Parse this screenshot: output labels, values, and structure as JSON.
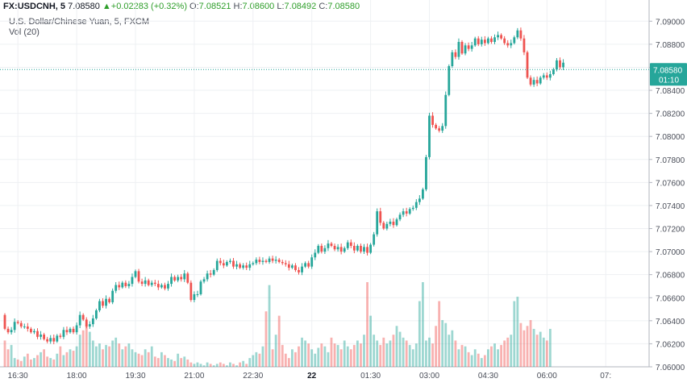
{
  "header": {
    "symbol": "FX:USDCNH, 5",
    "last": "7.08580",
    "change": "+0.02283 (+0.32%)",
    "o_label": "O:",
    "o": "7.08521",
    "h_label": "H:",
    "h": "7.08600",
    "l_label": "L:",
    "l": "7.08492",
    "c_label": "C:",
    "c": "7.08580"
  },
  "subtitle": "U.S. Dollar/Chinese Yuan, 5, FXCM",
  "vol_label": "Vol (20)",
  "colors": {
    "up": "#26a69a",
    "down": "#ef5350",
    "grid": "#eef0f3",
    "price_line": "#26a69a",
    "axis_text": "#4a4e59"
  },
  "chart_data": {
    "type": "candlestick",
    "y_ticks": [
      "7.09000",
      "7.08800",
      "7.08600",
      "7.08400",
      "7.08200",
      "7.08000",
      "7.07800",
      "7.07600",
      "7.07400",
      "7.07200",
      "7.07000",
      "7.06800",
      "7.06600",
      "7.06400",
      "7.06200",
      "7.06000"
    ],
    "ylim": [
      7.06,
      7.091
    ],
    "x_ticks": [
      {
        "label": "16:30",
        "i": 4
      },
      {
        "label": "18:00",
        "i": 22
      },
      {
        "label": "19:30",
        "i": 40
      },
      {
        "label": "21:00",
        "i": 58
      },
      {
        "label": "22:30",
        "i": 76
      },
      {
        "label": "22",
        "i": 94,
        "bold": true
      },
      {
        "label": "01:30",
        "i": 112
      },
      {
        "label": "03:00",
        "i": 130
      },
      {
        "label": "04:30",
        "i": 148
      },
      {
        "label": "06:00",
        "i": 166
      },
      {
        "label": "07:",
        "i": 184
      }
    ],
    "last_price": "7.08580",
    "countdown": "01:10",
    "price_base": 7.0645,
    "moves": [
      -12,
      -3,
      2,
      7,
      -1,
      -3,
      0,
      -2,
      -3,
      1,
      -5,
      2,
      -4,
      -2,
      3,
      -3,
      5,
      -1,
      6,
      -2,
      3,
      -3,
      6,
      9,
      -4,
      -6,
      2,
      5,
      7,
      8,
      -4,
      6,
      -3,
      10,
      5,
      -2,
      4,
      -3,
      2,
      6,
      5,
      -9,
      -2,
      3,
      -4,
      2,
      -1,
      -3,
      2,
      -3,
      4,
      6,
      -3,
      3,
      -2,
      5,
      -8,
      -15,
      5,
      0,
      11,
      2,
      5,
      -1,
      4,
      8,
      -2,
      -2,
      3,
      1,
      -5,
      2,
      -3,
      2,
      -2,
      3,
      1,
      3,
      -2,
      1,
      -1,
      3,
      -2,
      1,
      -2,
      -1,
      -1,
      -3,
      2,
      -4,
      -2,
      5,
      3,
      -3,
      8,
      4,
      6,
      -5,
      3,
      4,
      -2,
      -3,
      2,
      -4,
      3,
      5,
      -3,
      -4,
      4,
      -5,
      4,
      -5,
      7,
      9,
      20,
      -10,
      -5,
      4,
      2,
      -3,
      5,
      4,
      3,
      -2,
      4,
      1,
      5,
      3,
      8,
      28,
      36,
      -8,
      -3,
      -2,
      4,
      27,
      25,
      12,
      -4,
      13,
      -10,
      7,
      -3,
      3,
      6,
      -5,
      4,
      -3,
      4,
      -3,
      4,
      2,
      -3,
      -4,
      -2,
      2,
      5,
      6,
      -7,
      -12,
      -22,
      -6,
      4,
      -3,
      5,
      2,
      -2,
      3,
      4,
      8,
      -6,
      4
    ],
    "volume": [
      18,
      12,
      15,
      6,
      5,
      4,
      7,
      9,
      5,
      6,
      8,
      10,
      12,
      7,
      6,
      5,
      9,
      14,
      8,
      10,
      12,
      11,
      14,
      22,
      25,
      30,
      24,
      18,
      14,
      16,
      12,
      15,
      14,
      18,
      20,
      16,
      12,
      14,
      16,
      12,
      10,
      9,
      8,
      12,
      10,
      14,
      7,
      6,
      10,
      8,
      6,
      5,
      4,
      9,
      6,
      7,
      5,
      3,
      2,
      3,
      2,
      1,
      3,
      2,
      1,
      2,
      3,
      2,
      1,
      3,
      2,
      1,
      3,
      4,
      2,
      6,
      8,
      10,
      9,
      14,
      38,
      56,
      12,
      22,
      35,
      15,
      9,
      6,
      12,
      10,
      14,
      20,
      18,
      16,
      12,
      9,
      13,
      16,
      14,
      10,
      20,
      16,
      15,
      12,
      18,
      14,
      12,
      15,
      18,
      16,
      22,
      58,
      35,
      22,
      18,
      15,
      20,
      16,
      18,
      22,
      28,
      24,
      20,
      18,
      15,
      12,
      16,
      45,
      58,
      18,
      20,
      16,
      28,
      45,
      32,
      30,
      22,
      25,
      18,
      12,
      15,
      14,
      10,
      8,
      12,
      9,
      6,
      8,
      12,
      14,
      16,
      12,
      15,
      18,
      20,
      22,
      45,
      48,
      30,
      25,
      28,
      32,
      26,
      22,
      24,
      20,
      18,
      26
    ]
  }
}
